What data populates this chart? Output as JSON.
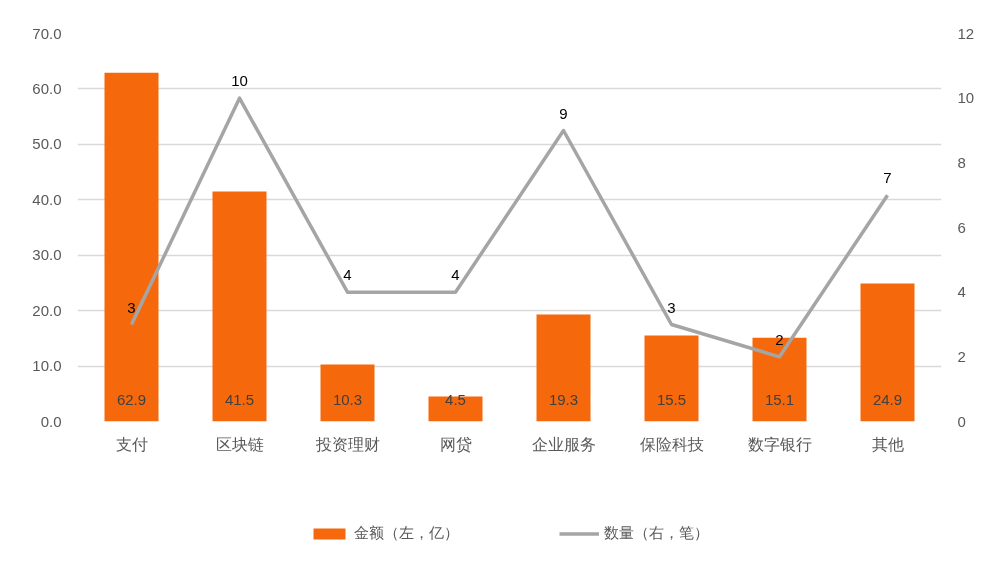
{
  "chart_data": {
    "type": "bar",
    "categories": [
      "支付",
      "区块链",
      "投资理财",
      "网贷",
      "企业服务",
      "保险科技",
      "数字银行",
      "其他"
    ],
    "series": [
      {
        "name": "金额（左，亿）",
        "color": "#f5690c",
        "values": [
          62.9,
          41.5,
          10.3,
          4.5,
          19.3,
          15.5,
          15.1,
          24.9
        ]
      },
      {
        "name": "数量（右，笔）",
        "type": "line",
        "axis": "y2",
        "color": "#a5a5a5",
        "values": [
          3,
          10,
          4,
          4,
          9,
          3,
          2,
          7
        ]
      }
    ],
    "ylim": [
      0,
      70
    ],
    "yticks": [
      {
        "value": 0,
        "label": "0.0"
      },
      {
        "value": 10,
        "label": "10.0"
      },
      {
        "value": 20,
        "label": "20.0"
      },
      {
        "value": 30,
        "label": "30.0"
      },
      {
        "value": 40,
        "label": "40.0"
      },
      {
        "value": 50,
        "label": "50.0"
      },
      {
        "value": 60,
        "label": "60.0"
      },
      {
        "value": 70,
        "label": "70.0"
      }
    ],
    "y2lim": [
      0,
      12
    ],
    "y2ticks": [
      0,
      2,
      4,
      6,
      8,
      10,
      12
    ],
    "grid": "y",
    "legend": "bottom",
    "data_labels": true
  }
}
